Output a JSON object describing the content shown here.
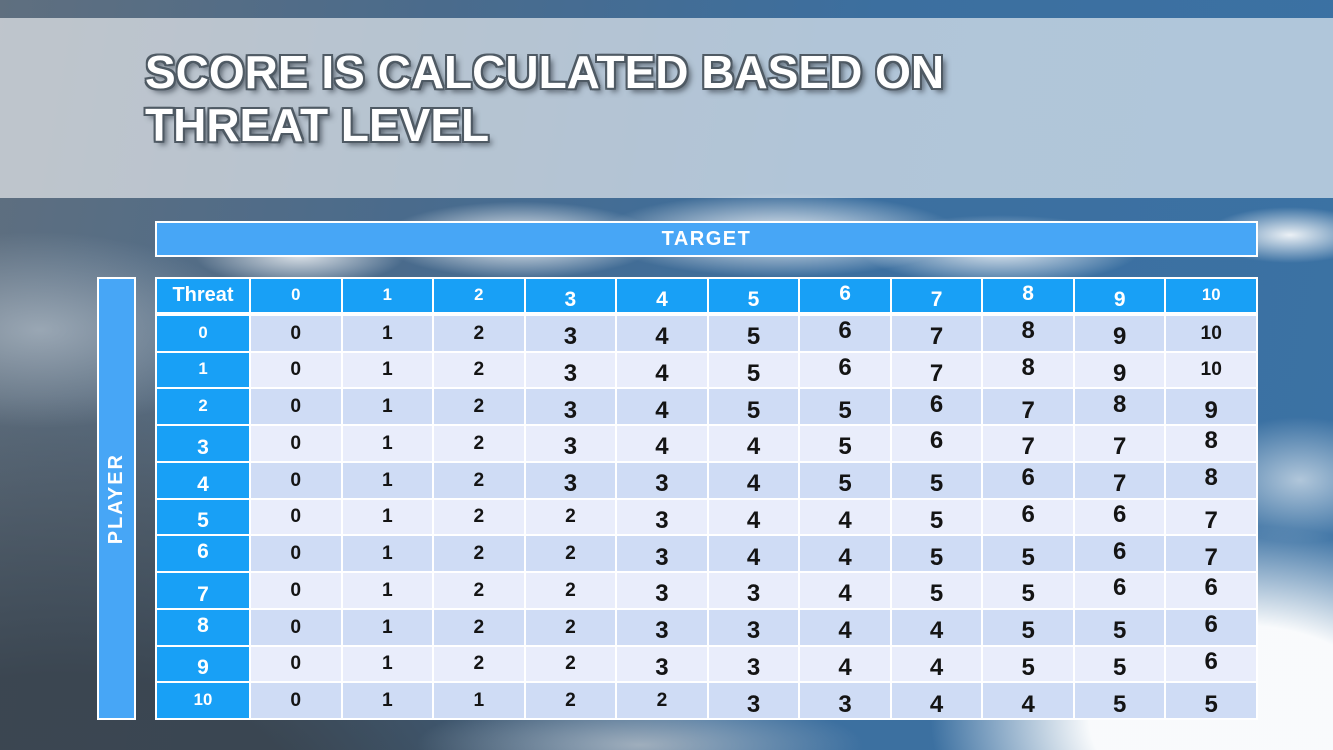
{
  "slide": {
    "title": "SCORE IS CALCULATED BASED ON THREAT LEVEL"
  },
  "matrix": {
    "target_label": "TARGET",
    "player_label": "PLAYER",
    "corner_label": "Threat",
    "column_headers": [
      "0",
      "1",
      "2",
      "3",
      "4",
      "5",
      "6",
      "7",
      "8",
      "9",
      "10"
    ],
    "row_headers": [
      "0",
      "1",
      "2",
      "3",
      "4",
      "5",
      "6",
      "7",
      "8",
      "9",
      "10"
    ],
    "rows": [
      [
        0,
        1,
        2,
        3,
        4,
        5,
        6,
        7,
        8,
        9,
        10
      ],
      [
        0,
        1,
        2,
        3,
        4,
        5,
        6,
        7,
        8,
        9,
        10
      ],
      [
        0,
        1,
        2,
        3,
        4,
        5,
        5,
        6,
        7,
        8,
        9
      ],
      [
        0,
        1,
        2,
        3,
        4,
        4,
        5,
        6,
        7,
        7,
        8
      ],
      [
        0,
        1,
        2,
        3,
        3,
        4,
        5,
        5,
        6,
        7,
        8
      ],
      [
        0,
        1,
        2,
        2,
        3,
        4,
        4,
        5,
        6,
        6,
        7
      ],
      [
        0,
        1,
        2,
        2,
        3,
        4,
        4,
        5,
        5,
        6,
        7
      ],
      [
        0,
        1,
        2,
        2,
        3,
        3,
        4,
        5,
        5,
        6,
        6
      ],
      [
        0,
        1,
        2,
        2,
        3,
        3,
        4,
        4,
        5,
        5,
        6
      ],
      [
        0,
        1,
        2,
        2,
        3,
        3,
        4,
        4,
        5,
        5,
        6
      ],
      [
        0,
        1,
        1,
        2,
        2,
        3,
        3,
        4,
        4,
        5,
        5
      ]
    ]
  },
  "colors": {
    "header-blue": "#18a0f6",
    "bar-blue": "#47a6f6",
    "row-even": "#cfdcf5",
    "row-odd": "#e9edfb",
    "title-outline": "#4f5a64"
  }
}
